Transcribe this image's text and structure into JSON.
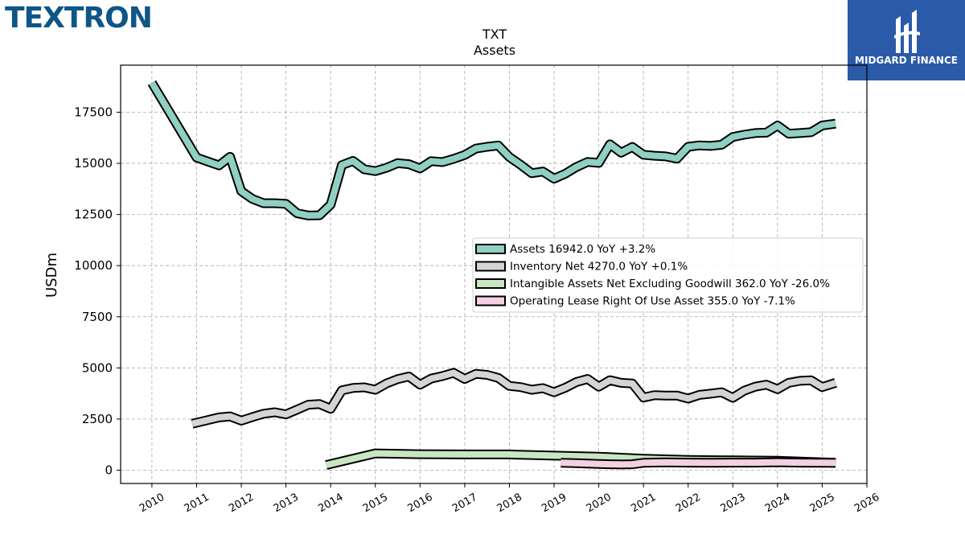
{
  "brand": {
    "logo_text": "TEXTRON",
    "badge_text": "MIDGARD FINANCE"
  },
  "colors": {
    "assets": "#8fd0c2",
    "inventory": "#d4d4d4",
    "intangible": "#c8e6c2",
    "lease": "#f5cfe2",
    "brand_logo": "#0e5687",
    "badge_bg": "#2b5aa8"
  },
  "chart_data": {
    "type": "line",
    "title": "TXT",
    "subtitle": "Assets",
    "xlabel": "",
    "ylabel": "USDm",
    "xlim": [
      2009.3,
      2026.0
    ],
    "ylim": [
      -650,
      19800
    ],
    "grid": true,
    "legend_position": "center-right",
    "x_ticks": [
      "2010",
      "2011",
      "2012",
      "2013",
      "2014",
      "2015",
      "2016",
      "2017",
      "2018",
      "2019",
      "2020",
      "2021",
      "2022",
      "2023",
      "2024",
      "2025",
      "2026"
    ],
    "y_ticks": [
      "0",
      "2500",
      "5000",
      "7500",
      "10000",
      "12500",
      "15000",
      "17500"
    ],
    "series": [
      {
        "name": "Assets",
        "legend": "Assets  16942.0 YoY +3.2%",
        "color_key": "assets",
        "x": [
          2010.0,
          2011.0,
          2011.5,
          2011.75,
          2012.0,
          2012.25,
          2012.5,
          2012.75,
          2013.0,
          2013.25,
          2013.5,
          2013.75,
          2014.0,
          2014.25,
          2014.5,
          2014.75,
          2015.0,
          2015.25,
          2015.5,
          2015.75,
          2016.0,
          2016.25,
          2016.5,
          2016.75,
          2017.0,
          2017.25,
          2017.5,
          2017.75,
          2018.0,
          2018.25,
          2018.5,
          2018.75,
          2019.0,
          2019.25,
          2019.5,
          2019.75,
          2020.0,
          2020.25,
          2020.5,
          2020.75,
          2021.0,
          2021.25,
          2021.5,
          2021.75,
          2022.0,
          2022.25,
          2022.5,
          2022.75,
          2023.0,
          2023.25,
          2023.5,
          2023.75,
          2024.0,
          2024.25,
          2024.5,
          2024.75,
          2025.0,
          2025.3
        ],
        "y": [
          18940,
          15280,
          14900,
          15320,
          13640,
          13260,
          13050,
          13050,
          13020,
          12560,
          12450,
          12460,
          12980,
          14910,
          15120,
          14710,
          14620,
          14780,
          15010,
          14960,
          14750,
          15110,
          15060,
          15220,
          15410,
          15720,
          15810,
          15870,
          15310,
          14930,
          14520,
          14600,
          14250,
          14490,
          14820,
          15070,
          15020,
          15930,
          15520,
          15800,
          15420,
          15370,
          15340,
          15230,
          15810,
          15880,
          15850,
          15910,
          16290,
          16400,
          16480,
          16500,
          16850,
          16450,
          16480,
          16520,
          16850,
          16942
        ]
      },
      {
        "name": "Inventory Net",
        "legend": "Inventory Net  4270.0 YoY +0.1%",
        "color_key": "inventory",
        "x": [
          2010.9,
          2011.25,
          2011.5,
          2011.75,
          2012.0,
          2012.25,
          2012.5,
          2012.75,
          2013.0,
          2013.25,
          2013.5,
          2013.75,
          2014.0,
          2014.25,
          2014.5,
          2014.75,
          2015.0,
          2015.25,
          2015.5,
          2015.75,
          2016.0,
          2016.25,
          2016.5,
          2016.75,
          2017.0,
          2017.25,
          2017.5,
          2017.75,
          2018.0,
          2018.25,
          2018.5,
          2018.75,
          2019.0,
          2019.25,
          2019.5,
          2019.75,
          2020.0,
          2020.25,
          2020.5,
          2020.75,
          2021.0,
          2021.25,
          2021.5,
          2021.75,
          2022.0,
          2022.25,
          2022.5,
          2022.75,
          2023.0,
          2023.25,
          2023.5,
          2023.75,
          2024.0,
          2024.25,
          2024.5,
          2024.75,
          2025.0,
          2025.3
        ],
        "y": [
          2270,
          2450,
          2580,
          2630,
          2420,
          2600,
          2760,
          2830,
          2730,
          2960,
          3200,
          3230,
          3000,
          3900,
          4020,
          4050,
          3930,
          4240,
          4450,
          4580,
          4180,
          4480,
          4600,
          4760,
          4460,
          4710,
          4660,
          4510,
          4120,
          4060,
          3930,
          4010,
          3810,
          4030,
          4310,
          4460,
          4080,
          4400,
          4270,
          4240,
          3550,
          3670,
          3650,
          3650,
          3500,
          3680,
          3740,
          3810,
          3540,
          3880,
          4080,
          4180,
          3960,
          4270,
          4370,
          4390,
          4060,
          4270
        ]
      },
      {
        "name": "Intangible Assets Net Excluding Goodwill",
        "legend": "Intangible Assets Net Excluding Goodwill  362.0 YoY -26.0%",
        "color_key": "intangible",
        "x": [
          2013.9,
          2015.0,
          2016.0,
          2017.0,
          2018.0,
          2019.0,
          2020.0,
          2021.0,
          2022.0,
          2023.0,
          2024.0,
          2025.3
        ],
        "y": [
          250,
          820,
          780,
          770,
          770,
          710,
          660,
          560,
          500,
          480,
          460,
          362
        ]
      },
      {
        "name": "Operating Lease Right Of Use Asset",
        "legend": "Operating Lease Right Of Use Asset  355.0 YoY -7.1%",
        "color_key": "lease",
        "x": [
          2019.15,
          2019.5,
          2020.0,
          2020.5,
          2020.75,
          2021.0,
          2021.5,
          2022.0,
          2022.5,
          2023.0,
          2023.5,
          2024.0,
          2024.5,
          2025.0,
          2025.3
        ],
        "y": [
          360,
          340,
          300,
          280,
          290,
          360,
          380,
          370,
          360,
          370,
          370,
          390,
          370,
          360,
          355
        ]
      }
    ]
  }
}
